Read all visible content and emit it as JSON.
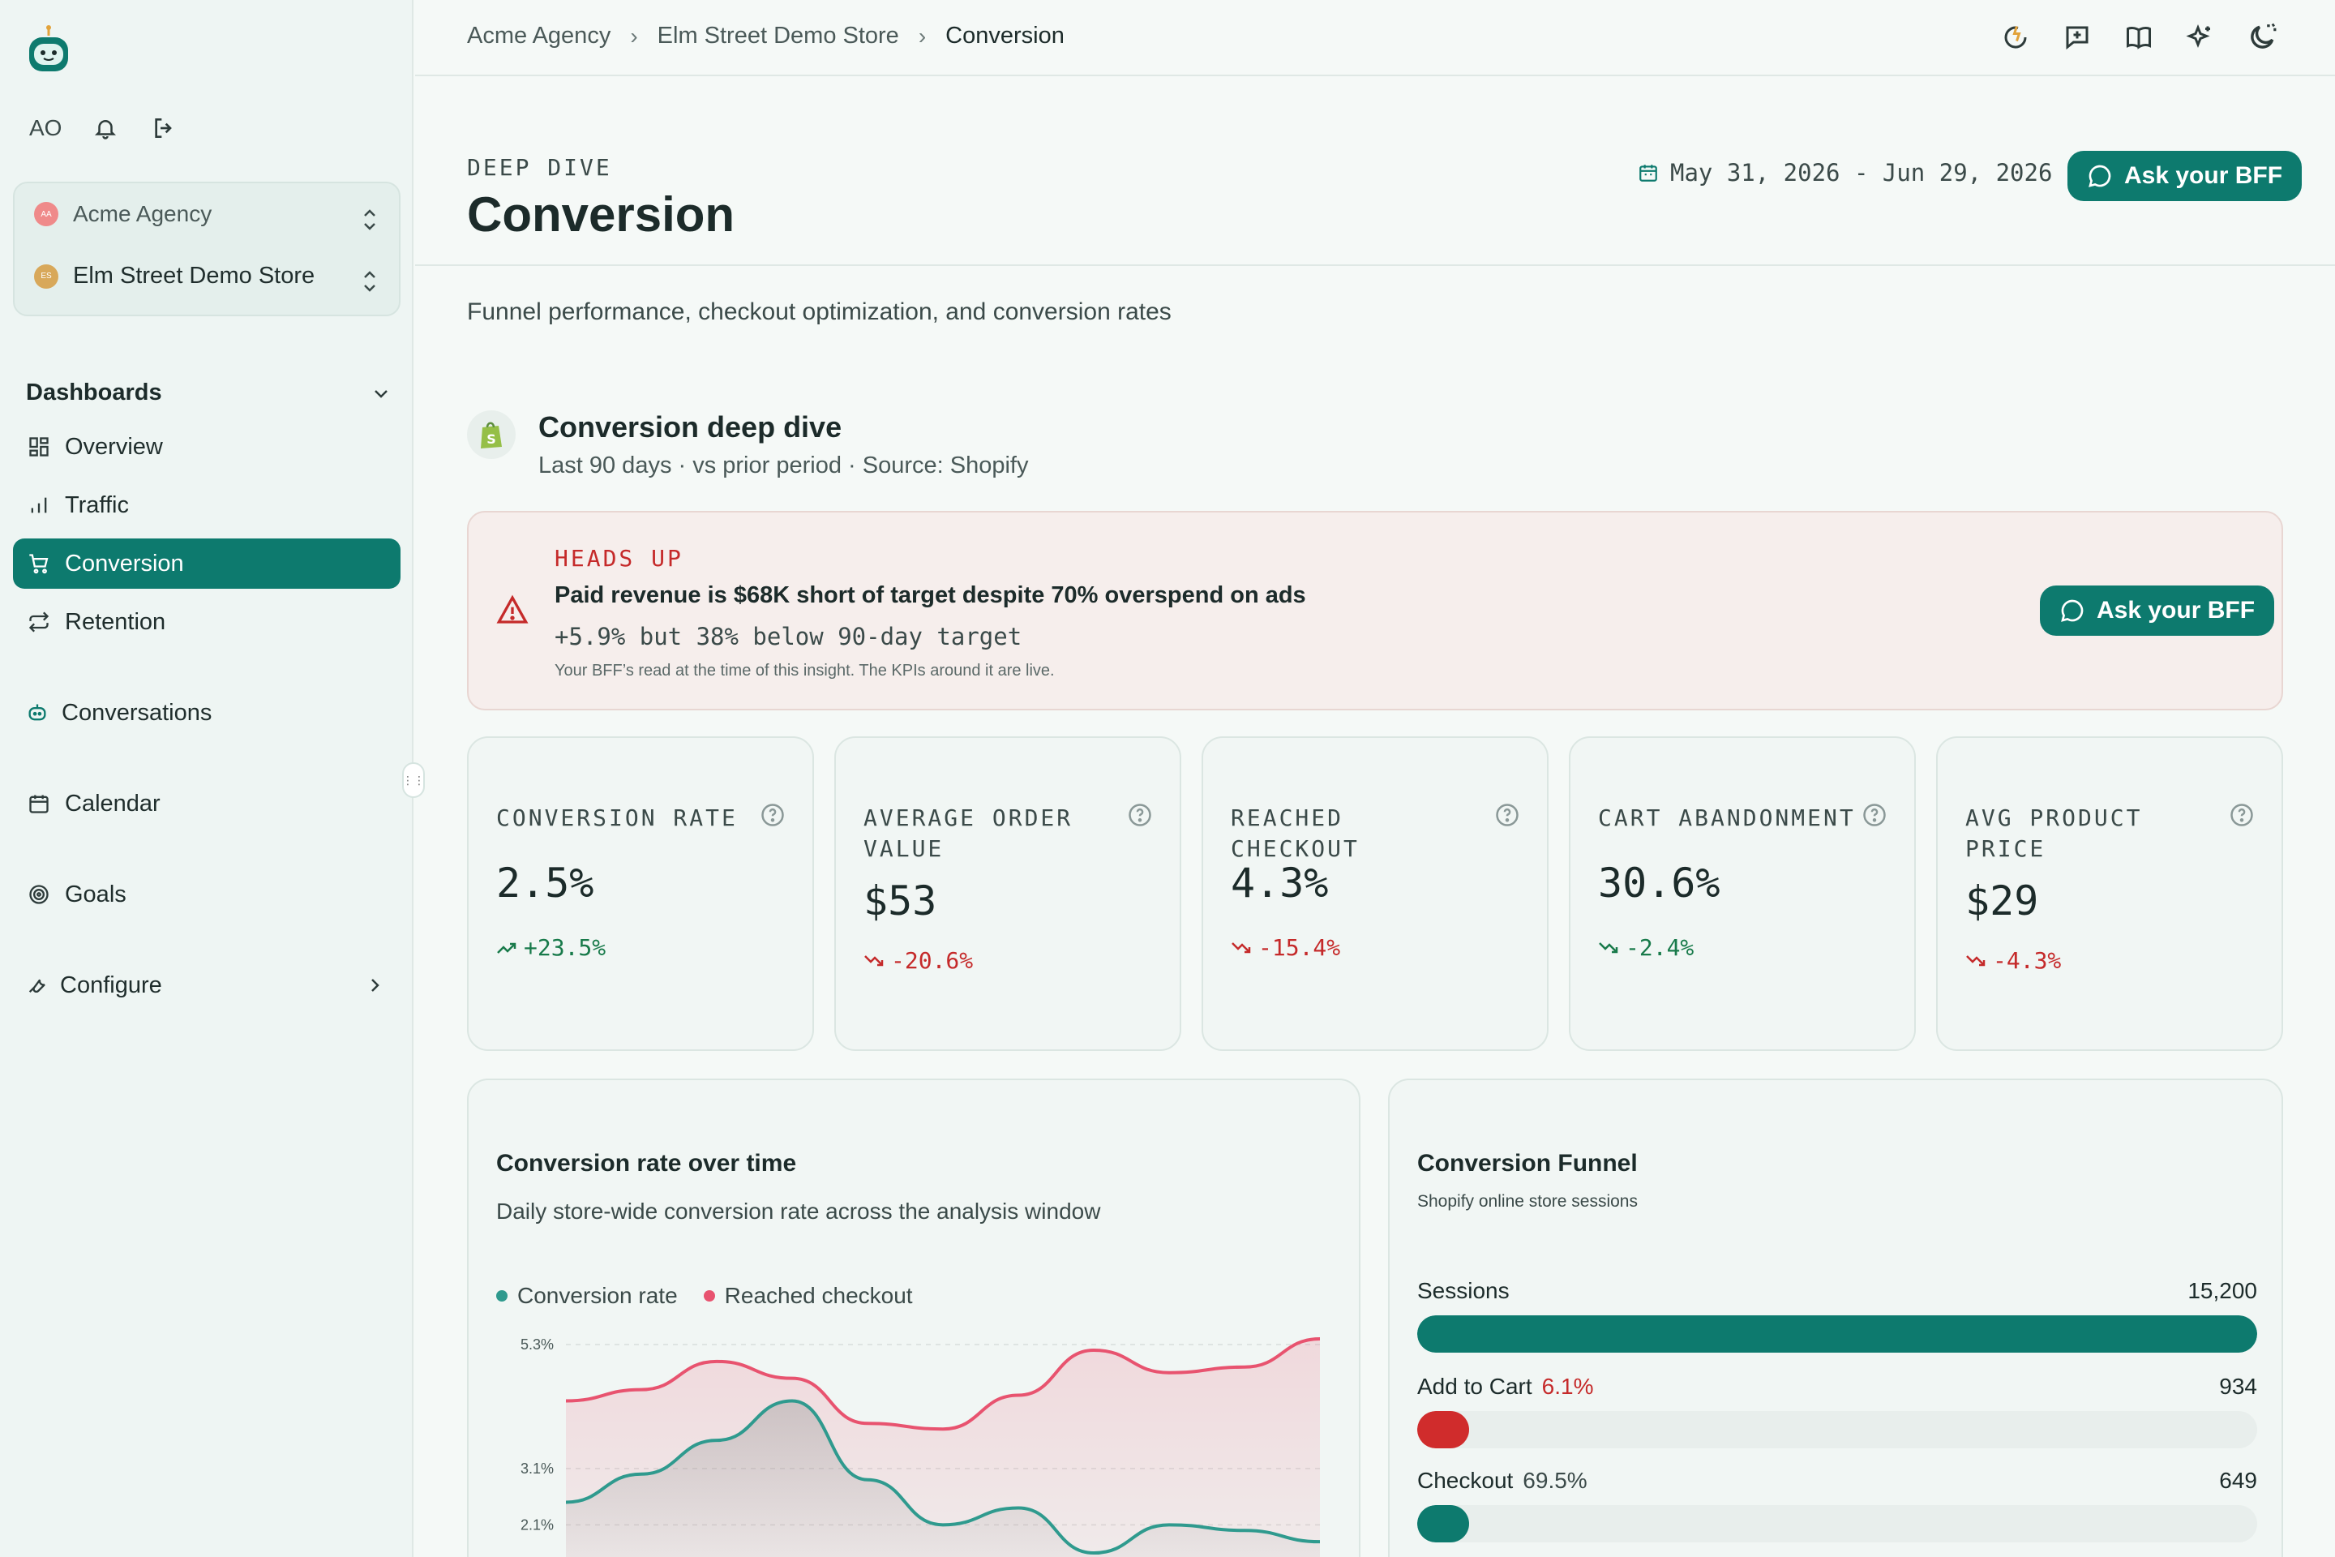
{
  "user": {
    "initials": "AO"
  },
  "switcher": {
    "agency": {
      "name": "Acme Agency",
      "badge": "AA",
      "color": "#ef8a8a"
    },
    "store": {
      "name": "Elm Street Demo Store",
      "badge": "ES",
      "color": "#d8a85a"
    }
  },
  "nav": {
    "section": "Dashboards",
    "items": [
      {
        "label": "Overview",
        "icon": "grid-icon"
      },
      {
        "label": "Traffic",
        "icon": "bar-chart-icon"
      },
      {
        "label": "Conversion",
        "icon": "cart-icon",
        "active": true
      },
      {
        "label": "Retention",
        "icon": "repeat-icon"
      }
    ],
    "conversations": "Conversations",
    "calendar": "Calendar",
    "goals": "Goals",
    "configure": "Configure"
  },
  "breadcrumb": [
    "Acme Agency",
    "Elm Street Demo Store",
    "Conversion"
  ],
  "page": {
    "eyebrow": "DEEP DIVE",
    "title": "Conversion",
    "date_range": "May 31, 2026 - Jun 29, 2026",
    "ask_label": "Ask your BFF",
    "subtitle": "Funnel performance, checkout optimization, and conversion rates"
  },
  "section": {
    "title": "Conversion deep dive",
    "subtitle": "Last 90 days · vs prior period · Source: Shopify"
  },
  "alert": {
    "tag": "HEADS UP",
    "headline": "Paid revenue is $68K short of target despite 70% overspend on ads",
    "stat": "+5.9% but 38% below 90-day target",
    "note": "Your BFF’s read at the time of this insight. The KPIs around it are live.",
    "ask_label": "Ask your BFF"
  },
  "kpis": [
    {
      "label": "CONVERSION RATE",
      "value": "2.5%",
      "delta": "+23.5%",
      "dir": "up"
    },
    {
      "label": "AVERAGE ORDER VALUE",
      "value": "$53",
      "delta": "-20.6%",
      "dir": "down"
    },
    {
      "label": "REACHED CHECKOUT",
      "value": "4.3%",
      "delta": "-15.4%",
      "dir": "down"
    },
    {
      "label": "CART ABANDONMENT",
      "value": "30.6%",
      "delta": "-2.4%",
      "dir": "up"
    },
    {
      "label": "AVG PRODUCT PRICE",
      "value": "$29",
      "delta": "-4.3%",
      "dir": "down"
    }
  ],
  "chart_card": {
    "title": "Conversion rate over time",
    "subtitle": "Daily store-wide conversion rate across the analysis window"
  },
  "chart_data": {
    "type": "area",
    "yticks": [
      "5.3%",
      "3.1%",
      "2.1%"
    ],
    "ytick_values": [
      5.3,
      3.1,
      2.1
    ],
    "ylim": [
      1.0,
      5.5
    ],
    "x": [
      0,
      1,
      2,
      3,
      4,
      5,
      6,
      7,
      8,
      9,
      10
    ],
    "series": [
      {
        "name": "Conversion rate",
        "color": "#2f9a8e",
        "values": [
          2.5,
          3.0,
          3.6,
          4.3,
          2.9,
          2.1,
          2.4,
          1.6,
          2.1,
          2.0,
          1.8
        ]
      },
      {
        "name": "Reached checkout",
        "color": "#e8536f",
        "values": [
          4.3,
          4.5,
          5.0,
          4.7,
          3.9,
          3.8,
          4.4,
          5.2,
          4.8,
          4.9,
          5.4
        ]
      }
    ]
  },
  "funnel": {
    "title": "Conversion Funnel",
    "subtitle": "Shopify online store sessions",
    "steps": [
      {
        "label": "Sessions",
        "pct": "",
        "count": "15,200",
        "fill": 1.0,
        "color": "#0d7a6e",
        "pct_color": ""
      },
      {
        "label": "Add to Cart",
        "pct": "6.1%",
        "count": "934",
        "fill": 0.061,
        "color": "#d02c2c",
        "pct_color": "#c52a2a"
      },
      {
        "label": "Checkout",
        "pct": "69.5%",
        "count": "649",
        "fill": 0.043,
        "color": "#0d7a6e",
        "pct_color": "#3b4a49"
      }
    ]
  }
}
